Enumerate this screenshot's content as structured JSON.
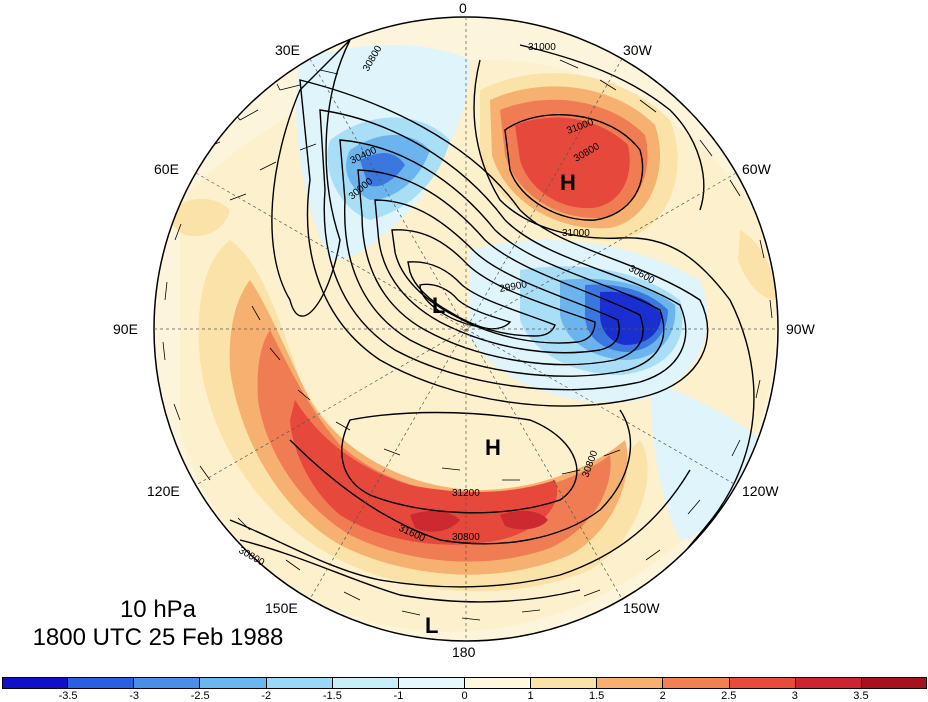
{
  "map": {
    "longitude_labels": {
      "top": "0",
      "top_right": "30W",
      "upper_right": "60W",
      "right": "90W",
      "lower_right": "120W",
      "bottom_right": "150W",
      "bottom": "180",
      "bottom_left": "150E",
      "lower_left": "120E",
      "left": "90E",
      "upper_left": "60E",
      "top_left": "30E"
    },
    "title": {
      "level": "10 hPa",
      "datetime": "1800 UTC 25 Feb 1988"
    },
    "pressure_centers": [
      "H",
      "H",
      "L",
      "L"
    ],
    "contour_labels": [
      "30800",
      "31000",
      "30400",
      "30000",
      "29900",
      "31200",
      "31600",
      "30600",
      "30800",
      "31000",
      "31000",
      "30800",
      "30800",
      "30800"
    ],
    "colorbar": {
      "ticks": [
        "-3.5",
        "-3",
        "-2.5",
        "-2",
        "-1.5",
        "-1",
        "0",
        "1",
        "1.5",
        "2",
        "2.5",
        "3",
        "3.5"
      ],
      "colors": [
        "#1010c8",
        "#2a5fe0",
        "#4a8ee8",
        "#6ab6f0",
        "#9ad8f8",
        "#c8eefa",
        "#e6f8fb",
        "#fdf8de",
        "#fbe2a8",
        "#f8b070",
        "#f28050",
        "#e84a3c",
        "#cc2530",
        "#a8101c"
      ]
    },
    "anomaly_colors": {
      "neutral": "#fcf5dc",
      "warm1": "#fbe2a8",
      "warm2": "#f6b070",
      "warm3": "#f07c54",
      "warm4": "#e6483c",
      "warm5": "#cc2a30",
      "cool1": "#dff4fb",
      "cool2": "#a8dff6",
      "cool3": "#6cb4ee",
      "cool4": "#3a78e0",
      "cool5": "#1a2fd0"
    }
  }
}
